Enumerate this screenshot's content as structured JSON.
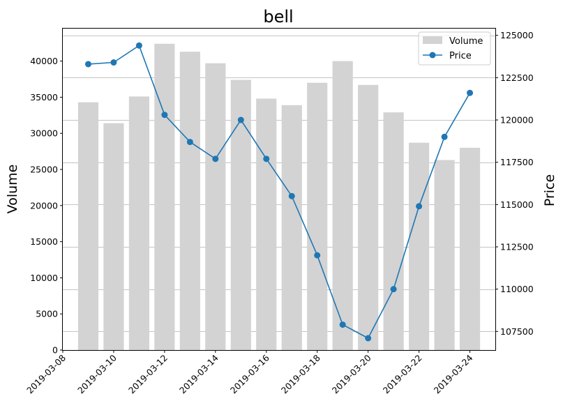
{
  "chart_data": {
    "type": "bar",
    "title": "bell",
    "ylabel": "Volume",
    "y2label": "Price",
    "x": [
      "2019-03-09",
      "2019-03-10",
      "2019-03-11",
      "2019-03-12",
      "2019-03-13",
      "2019-03-14",
      "2019-03-15",
      "2019-03-16",
      "2019-03-17",
      "2019-03-18",
      "2019-03-19",
      "2019-03-20",
      "2019-03-21",
      "2019-03-22",
      "2019-03-23",
      "2019-03-24"
    ],
    "xlim": [
      "2019-03-08",
      "2019-03-25"
    ],
    "x_ticks": [
      "2019-03-08",
      "2019-03-10",
      "2019-03-12",
      "2019-03-14",
      "2019-03-16",
      "2019-03-18",
      "2019-03-20",
      "2019-03-22",
      "2019-03-24"
    ],
    "ylim": [
      0,
      44500
    ],
    "y_ticks": [
      0,
      5000,
      10000,
      15000,
      20000,
      25000,
      30000,
      35000,
      40000
    ],
    "y2lim": [
      106400,
      125400
    ],
    "y2_ticks": [
      107500,
      110000,
      112500,
      115000,
      117500,
      120000,
      122500,
      125000
    ],
    "grid": "right axis, horizontal",
    "legend_position": "top-right",
    "series": [
      {
        "name": "Volume",
        "type": "bar",
        "axis": "left",
        "color": "#d3d3d3",
        "values": [
          34300,
          31400,
          35100,
          42400,
          41300,
          39700,
          37400,
          34800,
          33900,
          37000,
          40000,
          36700,
          32900,
          28700,
          26300,
          28000
        ]
      },
      {
        "name": "Price",
        "type": "line",
        "axis": "right",
        "color": "#1f77b4",
        "marker": "circle",
        "values": [
          123300,
          123400,
          124400,
          120300,
          118700,
          117700,
          120000,
          117700,
          115500,
          112000,
          107900,
          107100,
          110000,
          114900,
          119000,
          121600
        ]
      }
    ]
  }
}
